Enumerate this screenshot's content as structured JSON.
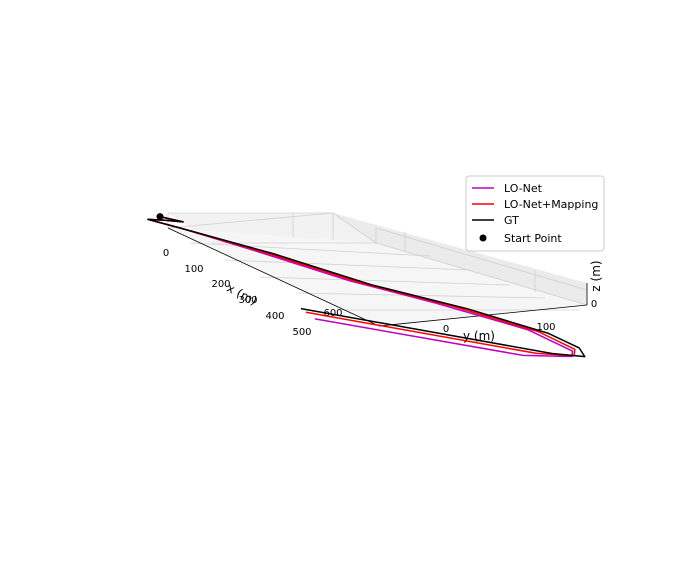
{
  "chart_data": {
    "type": "line",
    "projection": "3d",
    "title": "",
    "xlabel": "x (m)",
    "ylabel": "y (m)",
    "zlabel": "z (m)",
    "x_ticks": [
      "0",
      "100",
      "200",
      "300",
      "400",
      "500",
      "600"
    ],
    "y_ticks": [
      "0",
      "100"
    ],
    "z_ticks": [
      "0"
    ],
    "grid": true,
    "legend_position": "top-right",
    "series": [
      {
        "name": "LO-Net",
        "color": "#bf00bf",
        "points": [
          [
            0,
            -30
          ],
          [
            10,
            -20
          ],
          [
            25,
            -30
          ],
          [
            45,
            -40
          ],
          [
            75,
            -25
          ],
          [
            150,
            0
          ],
          [
            270,
            35
          ],
          [
            330,
            70
          ],
          [
            420,
            105
          ],
          [
            540,
            115
          ],
          [
            590,
            110
          ],
          [
            660,
            80
          ],
          [
            670,
            -20
          ]
        ]
      },
      {
        "name": "LO-Net+Mapping",
        "color": "#ff0000",
        "points": [
          [
            0,
            -30
          ],
          [
            10,
            -20
          ],
          [
            25,
            -30
          ],
          [
            45,
            -40
          ],
          [
            75,
            -25
          ],
          [
            150,
            5
          ],
          [
            270,
            40
          ],
          [
            330,
            78
          ],
          [
            420,
            110
          ],
          [
            520,
            118
          ],
          [
            580,
            112
          ],
          [
            620,
            90
          ],
          [
            625,
            -20
          ]
        ]
      },
      {
        "name": "GT",
        "color": "#000000",
        "points": [
          [
            0,
            -30
          ],
          [
            10,
            -20
          ],
          [
            25,
            -30
          ],
          [
            45,
            -40
          ],
          [
            75,
            -25
          ],
          [
            150,
            10
          ],
          [
            270,
            45
          ],
          [
            330,
            85
          ],
          [
            420,
            115
          ],
          [
            500,
            122
          ],
          [
            570,
            118
          ],
          [
            595,
            100
          ],
          [
            600,
            -20
          ]
        ]
      },
      {
        "name": "Start Point",
        "type": "scatter",
        "color": "#000000",
        "points": [
          [
            0,
            -30
          ]
        ]
      }
    ]
  }
}
